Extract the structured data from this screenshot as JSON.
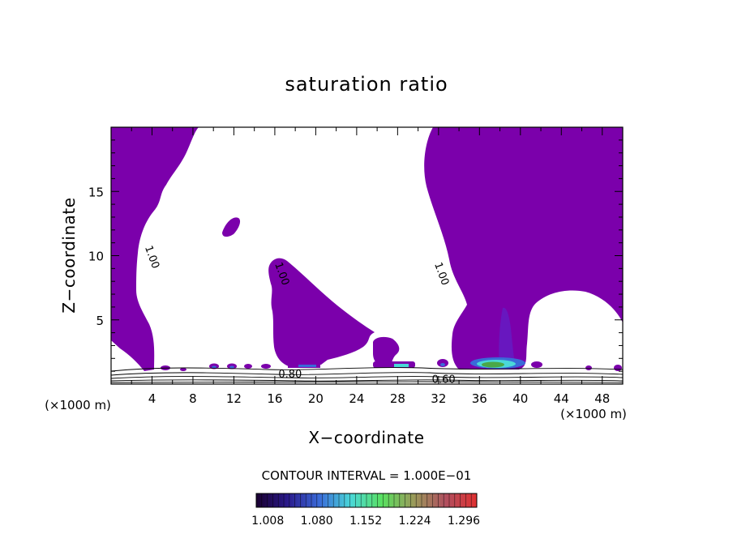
{
  "chart_data": {
    "type": "filled-contour",
    "title": "saturation ratio",
    "xlabel": "X−coordinate",
    "ylabel": "Z−coordinate",
    "x_unit": "(×1000 m)",
    "z_unit": "(×1000 m)",
    "xlim": [
      0,
      50
    ],
    "ylim": [
      0,
      20
    ],
    "x_ticks": [
      4,
      8,
      12,
      16,
      20,
      24,
      28,
      32,
      36,
      40,
      44,
      48
    ],
    "y_ticks": [
      5,
      10,
      15
    ],
    "contour_interval_text": "CONTOUR INTERVAL = 1.000E−01",
    "contour_labels": [
      {
        "text": "1.00",
        "x": 3.7,
        "z": 9.8
      },
      {
        "text": "1.00",
        "x": 16.4,
        "z": 8.5
      },
      {
        "text": "1.00",
        "x": 32.0,
        "z": 8.5
      },
      {
        "text": "0.80",
        "x": 17.5,
        "z": 0.5
      },
      {
        "text": "0.60",
        "x": 32.5,
        "z": 0.1
      }
    ],
    "colorbar": {
      "ticks": [
        "1.008",
        "1.080",
        "1.152",
        "1.224",
        "1.296"
      ],
      "colors": [
        "#1a0030",
        "#2a1a8c",
        "#3a6ad8",
        "#4ad8d8",
        "#5ae060",
        "#9a9a5a",
        "#b05060",
        "#e03030"
      ]
    },
    "fill_color": "#7b00ab",
    "regions": [
      {
        "name": "left-column",
        "x_range": [
          0,
          8.5
        ],
        "z_range": [
          1.0,
          19.8
        ]
      },
      {
        "name": "small-island",
        "x_range": [
          10.7,
          12.8
        ],
        "z_range": [
          11.3,
          12.9
        ]
      },
      {
        "name": "mid-lobe",
        "x_range": [
          15.5,
          25.5
        ],
        "z_range": [
          1.2,
          9.8
        ]
      },
      {
        "name": "small-lobe",
        "x_range": [
          25.4,
          28.4
        ],
        "z_range": [
          1.3,
          3.6
        ]
      },
      {
        "name": "right-column",
        "x_range": [
          31.5,
          50
        ],
        "z_range": [
          1.2,
          19.8
        ]
      }
    ]
  }
}
